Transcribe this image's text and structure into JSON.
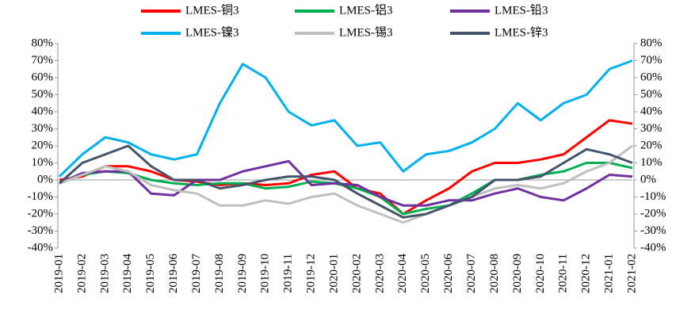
{
  "chart_data": {
    "type": "line",
    "categories": [
      "2019-01",
      "2019-02",
      "2019-03",
      "2019-04",
      "2019-05",
      "2019-06",
      "2019-07",
      "2019-08",
      "2019-09",
      "2019-10",
      "2019-11",
      "2019-12",
      "2020-01",
      "2020-02",
      "2020-03",
      "2020-04",
      "2020-05",
      "2020-06",
      "2020-07",
      "2020-08",
      "2020-09",
      "2020-10",
      "2020-11",
      "2020-12",
      "2021-01",
      "2021-02"
    ],
    "series": [
      {
        "name": "LMES-铜3",
        "color": "#ff0000",
        "values": [
          0,
          2,
          8,
          8,
          5,
          0,
          -1,
          -3,
          -2,
          -3,
          -2,
          3,
          5,
          -5,
          -8,
          -20,
          -12,
          -5,
          5,
          10,
          10,
          12,
          15,
          25,
          35,
          33
        ]
      },
      {
        "name": "LMES-铝3",
        "color": "#00b050",
        "values": [
          -2,
          3,
          5,
          4,
          0,
          -2,
          -3,
          -2,
          -2,
          -5,
          -4,
          -1,
          -2,
          -5,
          -10,
          -20,
          -17,
          -15,
          -8,
          0,
          0,
          3,
          5,
          10,
          10,
          7
        ]
      },
      {
        "name": "LMES-铅3",
        "color": "#7030a0",
        "values": [
          -2,
          4,
          5,
          5,
          -8,
          -9,
          0,
          0,
          5,
          8,
          11,
          -3,
          -2,
          -3,
          -10,
          -15,
          -15,
          -12,
          -12,
          -8,
          -5,
          -10,
          -12,
          -5,
          3,
          2
        ]
      },
      {
        "name": "LMES-镍3",
        "color": "#00b0f0",
        "values": [
          2,
          15,
          25,
          22,
          15,
          12,
          15,
          45,
          68,
          60,
          40,
          32,
          35,
          20,
          22,
          5,
          15,
          17,
          22,
          30,
          45,
          35,
          45,
          50,
          65,
          70
        ]
      },
      {
        "name": "LMES-锡3",
        "color": "#bfbfbf",
        "values": [
          -2,
          3,
          8,
          5,
          -3,
          -6,
          -8,
          -15,
          -15,
          -12,
          -14,
          -10,
          -8,
          -15,
          -20,
          -25,
          -20,
          -15,
          -10,
          -5,
          -3,
          -5,
          -2,
          5,
          10,
          20
        ]
      },
      {
        "name": "LMES-锌3",
        "color": "#44546a",
        "values": [
          -2,
          10,
          15,
          20,
          8,
          0,
          0,
          -5,
          -3,
          0,
          2,
          2,
          0,
          -8,
          -15,
          -22,
          -20,
          -15,
          -10,
          0,
          0,
          2,
          10,
          18,
          15,
          10
        ]
      }
    ],
    "ylim": [
      -40,
      80
    ],
    "yticks": [
      {
        "value": -40,
        "label": "-40%"
      },
      {
        "value": -30,
        "label": "-30%"
      },
      {
        "value": -20,
        "label": "-20%"
      },
      {
        "value": -10,
        "label": "-10%"
      },
      {
        "value": 0,
        "label": "0%"
      },
      {
        "value": 10,
        "label": "10%"
      },
      {
        "value": 20,
        "label": "20%"
      },
      {
        "value": 30,
        "label": "30%"
      },
      {
        "value": 40,
        "label": "40%"
      },
      {
        "value": 50,
        "label": "50%"
      },
      {
        "value": 60,
        "label": "60%"
      },
      {
        "value": 70,
        "label": "70%"
      },
      {
        "value": 80,
        "label": "80%"
      }
    ],
    "y2lim": [
      -40,
      80
    ],
    "y2ticks": [
      {
        "value": -40,
        "label": "-40%"
      },
      {
        "value": -30,
        "label": "-30%"
      },
      {
        "value": -20,
        "label": "-20%"
      },
      {
        "value": -10,
        "label": "-10%"
      },
      {
        "value": 0,
        "label": "0%"
      },
      {
        "value": 10,
        "label": "10%"
      },
      {
        "value": 20,
        "label": "20%"
      },
      {
        "value": 30,
        "label": "30%"
      },
      {
        "value": 40,
        "label": "40%"
      },
      {
        "value": 50,
        "label": "50%"
      },
      {
        "value": 60,
        "label": "60%"
      },
      {
        "value": 70,
        "label": "70%"
      },
      {
        "value": 80,
        "label": "80%"
      }
    ],
    "negative_tick_color": "#ff0000",
    "grid": false
  }
}
